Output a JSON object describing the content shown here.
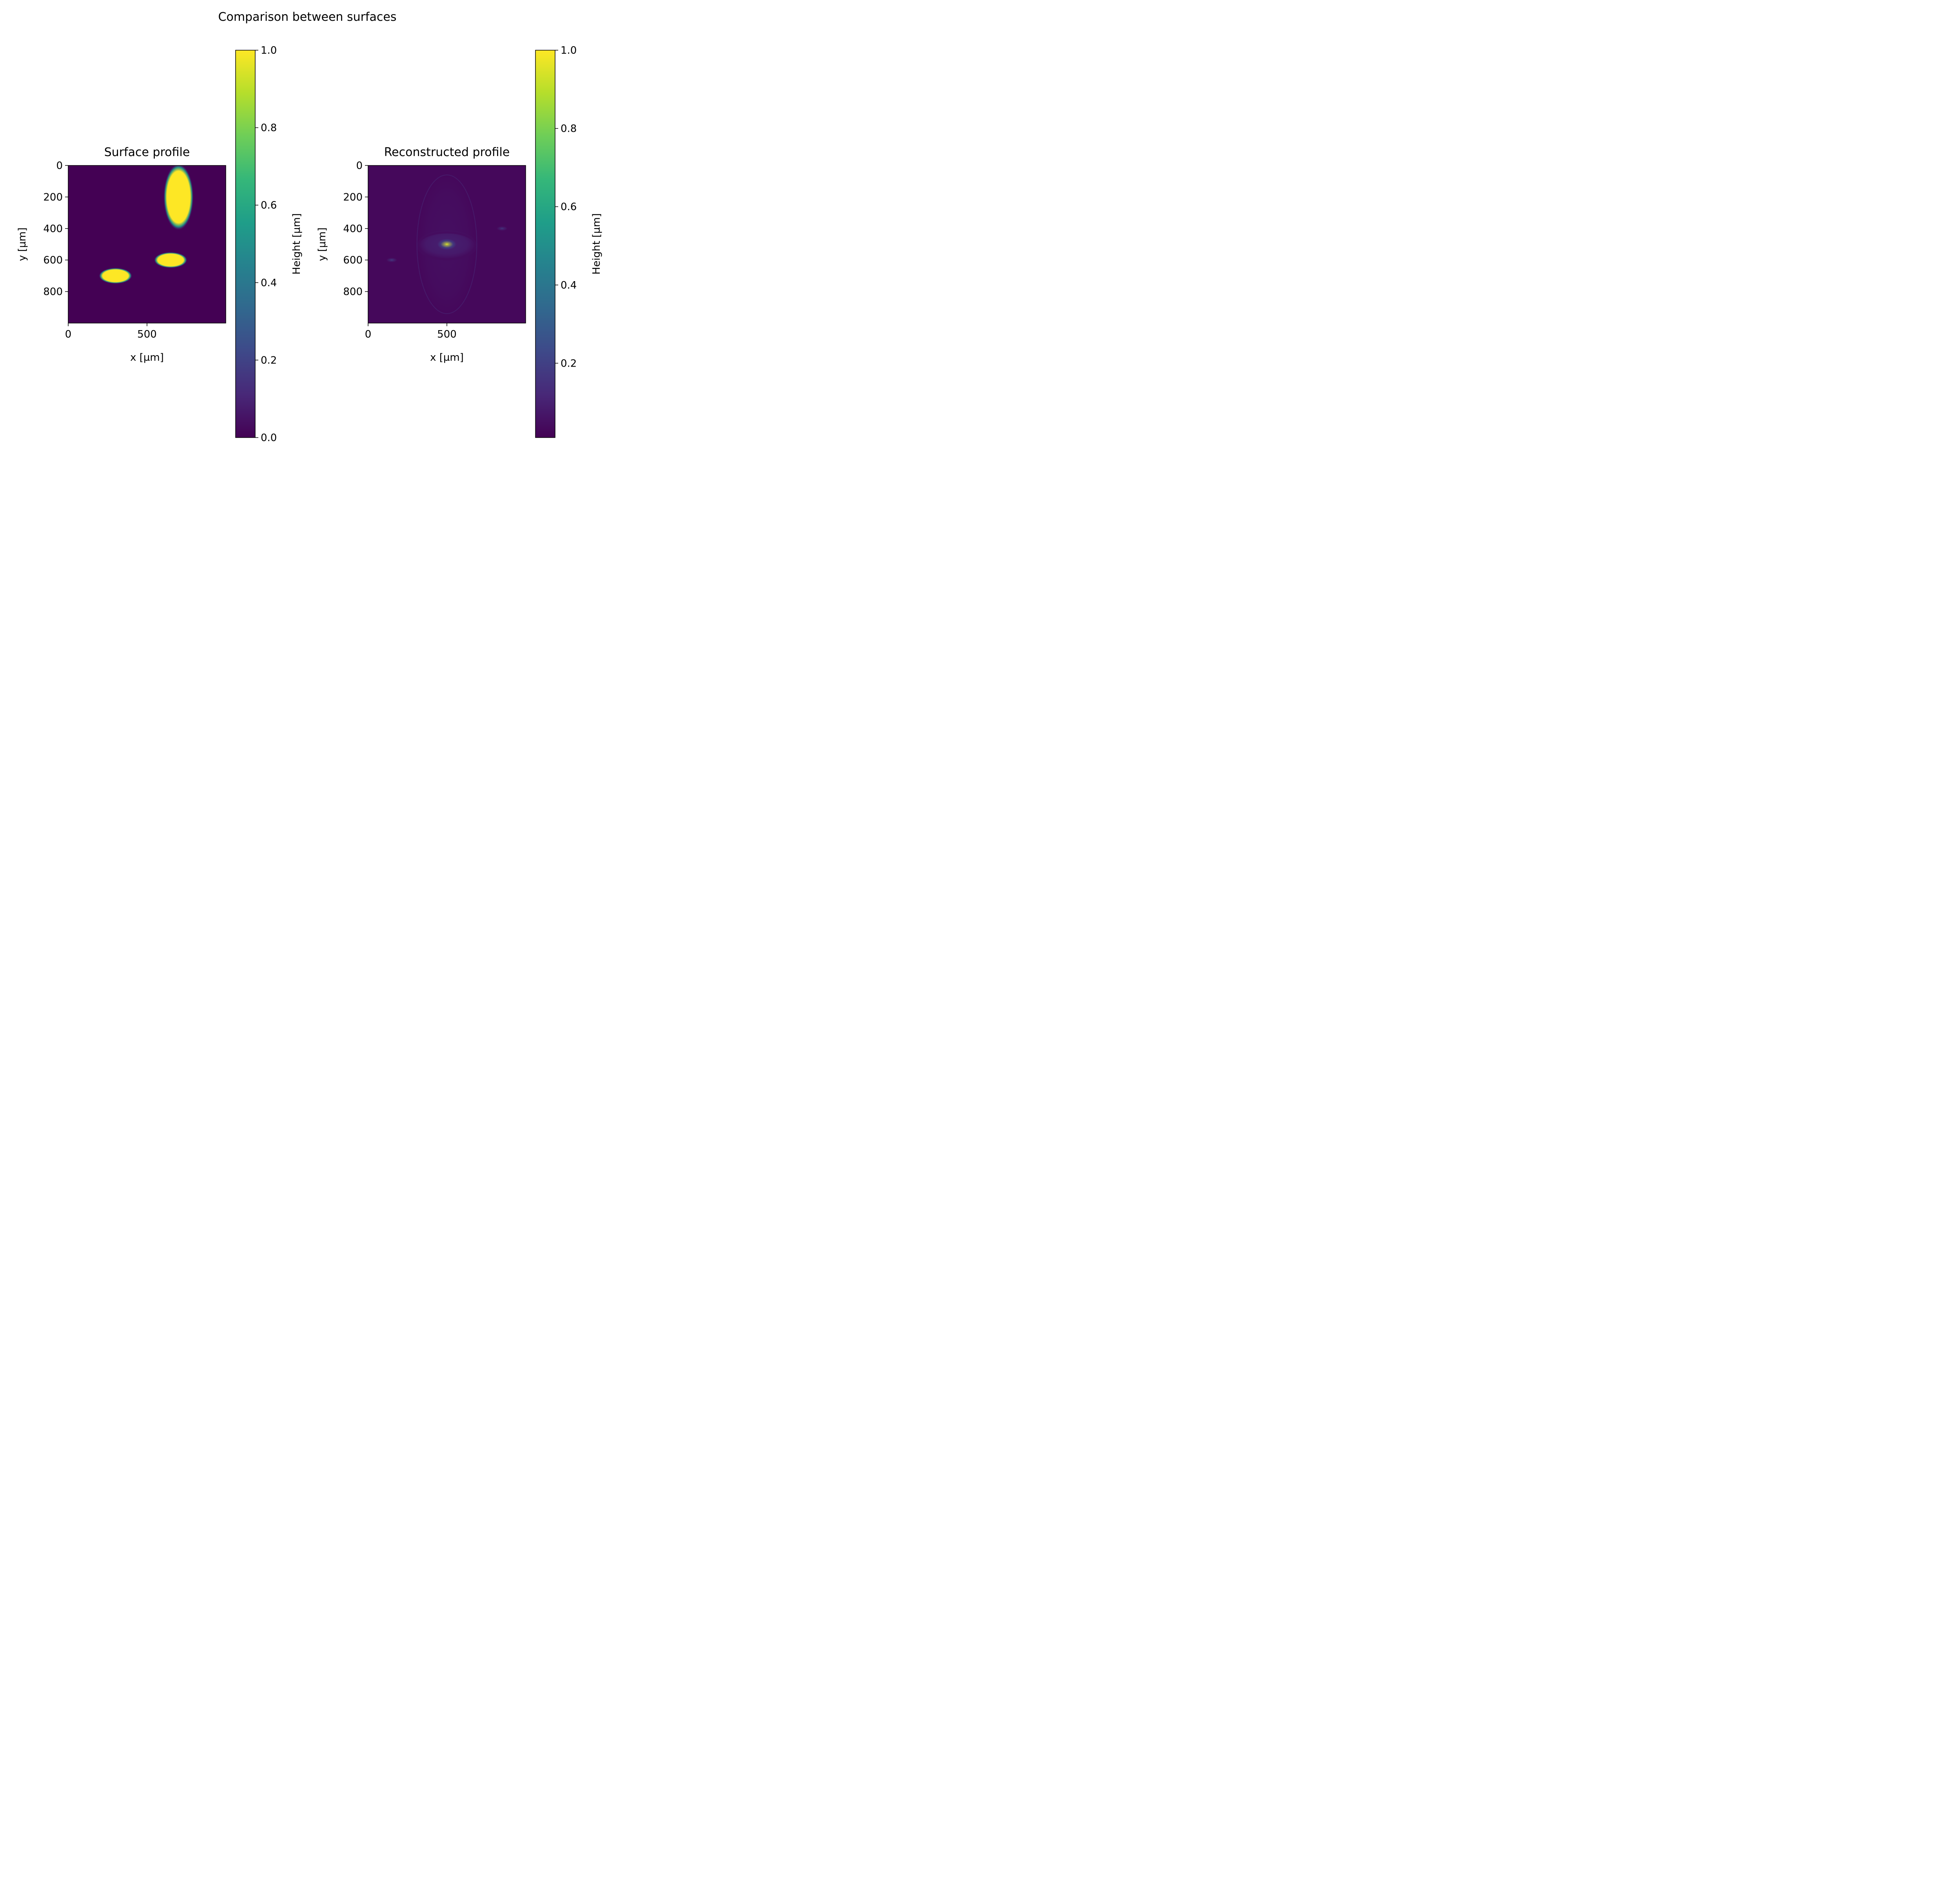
{
  "figure": {
    "suptitle": "Comparison between surfaces"
  },
  "colormap": {
    "name": "viridis",
    "stops": [
      "#440154",
      "#482878",
      "#3e4989",
      "#31688e",
      "#26828e",
      "#1f9e89",
      "#35b779",
      "#6ece58",
      "#b5de2b",
      "#fde725"
    ]
  },
  "chart_data": [
    {
      "type": "heatmap",
      "title": "Surface profile",
      "xlabel": "x [µm]",
      "ylabel": "y [µm]",
      "xlim": [
        0,
        1000
      ],
      "ylim": [
        1000,
        0
      ],
      "xticks": [
        0,
        500
      ],
      "yticks": [
        0,
        200,
        400,
        600,
        800
      ],
      "colorbar": {
        "label": "Height [µm]",
        "range": [
          0.0,
          1.0
        ],
        "ticks": [
          "0.0",
          "0.2",
          "0.4",
          "0.6",
          "0.8",
          "1.0"
        ],
        "tick_values": [
          0,
          0.2,
          0.4,
          0.6,
          0.8,
          1.0
        ]
      },
      "background_value": 0.0,
      "features": [
        {
          "shape": "ellipse",
          "cx": 700,
          "cy": 200,
          "rx": 95,
          "ry": 210,
          "value": 1.0
        },
        {
          "shape": "ellipse",
          "cx": 650,
          "cy": 600,
          "rx": 105,
          "ry": 50,
          "value": 1.0
        },
        {
          "shape": "ellipse",
          "cx": 300,
          "cy": 700,
          "rx": 105,
          "ry": 50,
          "value": 1.0
        }
      ]
    },
    {
      "type": "heatmap",
      "title": "Reconstructed profile",
      "xlabel": "x [µm]",
      "ylabel": "y [µm]",
      "xlim": [
        0,
        1000
      ],
      "ylim": [
        1000,
        0
      ],
      "xticks": [
        0,
        500
      ],
      "yticks": [
        0,
        200,
        400,
        600,
        800
      ],
      "colorbar": {
        "label": "Height [µm]",
        "range": [
          0.01,
          1.0
        ],
        "ticks": [
          "0.2",
          "0.4",
          "0.6",
          "0.8",
          "1.0"
        ],
        "tick_values": [
          0.2,
          0.4,
          0.6,
          0.8,
          1.0
        ]
      },
      "background_value": 0.03,
      "features": [
        {
          "shape": "ellipse",
          "cx": 500,
          "cy": 500,
          "rx": 180,
          "ry": 440,
          "value": 0.05
        },
        {
          "shape": "ellipse",
          "cx": 500,
          "cy": 500,
          "rx": 190,
          "ry": 90,
          "value": 0.1
        },
        {
          "shape": "ellipse",
          "cx": 500,
          "cy": 500,
          "rx": 60,
          "ry": 35,
          "value": 0.22
        },
        {
          "shape": "point",
          "cx": 500,
          "cy": 500,
          "value": 0.95
        },
        {
          "shape": "point",
          "cx": 150,
          "cy": 600,
          "value": 0.18
        },
        {
          "shape": "point",
          "cx": 850,
          "cy": 400,
          "value": 0.16
        }
      ]
    }
  ]
}
